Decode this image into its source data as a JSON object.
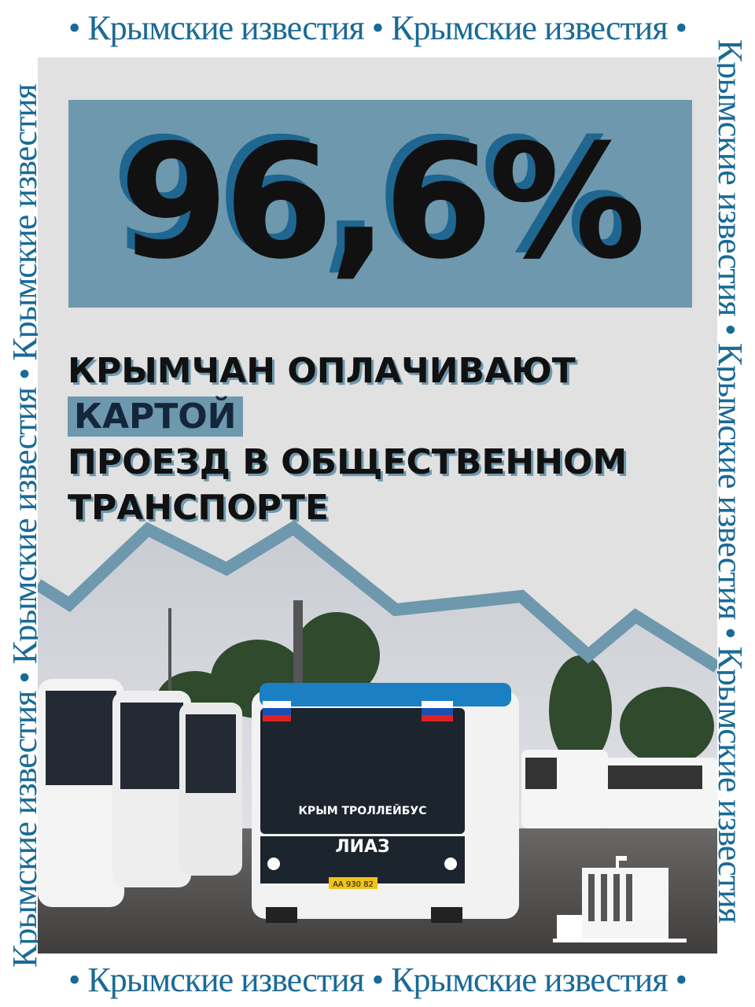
{
  "brand": {
    "name": "Крымские известия",
    "separator": "•",
    "color": "#1a6a96"
  },
  "headline": {
    "figure": "96,6%",
    "line1_prefix": "КРЫМЧАН ОПЛАЧИВАЮТ",
    "line1_highlight": "КАРТОЙ",
    "line2": "ПРОЕЗД В ОБЩЕСТВЕННОМ",
    "line3": "ТРАНСПОРТЕ"
  },
  "colors": {
    "panel": "#e1e1e1",
    "box": "#6e98ad",
    "shadow": "#1f6690"
  },
  "photo": {
    "bus_plate": "АА 930 82",
    "bus_label": "КРЫМ ТРОЛЛЕЙБУС",
    "bus_brand": "ЛИАЗ"
  }
}
